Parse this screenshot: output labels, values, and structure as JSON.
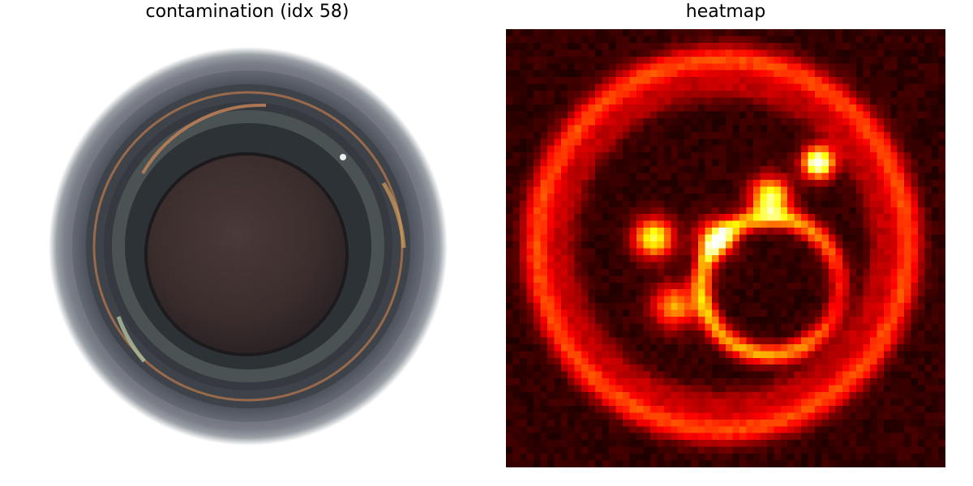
{
  "panels": {
    "left": {
      "title": "contamination (idx 58)"
    },
    "right": {
      "title": "heatmap"
    }
  },
  "colors": {
    "background": "#ffffff",
    "heatmap_colormap": "hot"
  }
}
